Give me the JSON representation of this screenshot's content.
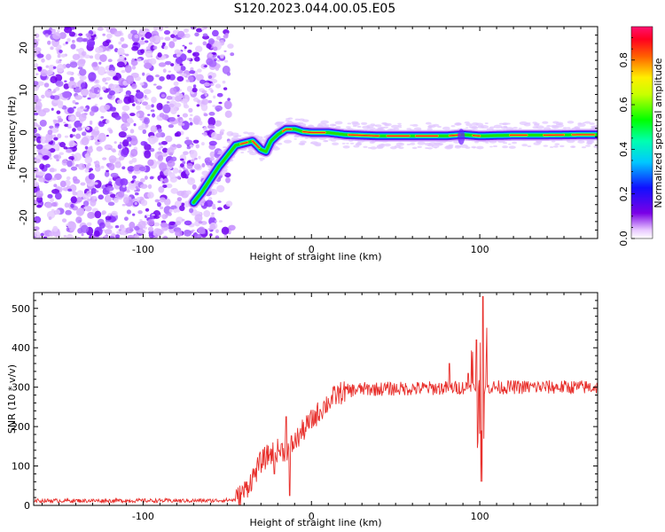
{
  "figure": {
    "title": "S120.2023.044.00.05.E05"
  },
  "chart_data": [
    {
      "type": "heatmap",
      "title": "",
      "xlabel": "Height of straight line (km)",
      "ylabel": "Frequency (Hz)",
      "xlim": [
        -165,
        170
      ],
      "ylim": [
        -25,
        25
      ],
      "xticks": [
        -100,
        0,
        100
      ],
      "yticks": [
        -20,
        -10,
        0,
        10,
        20
      ],
      "colorbar": {
        "label": "Normalized spectral amplitude",
        "range": [
          0,
          0.95
        ],
        "ticks": [
          0.0,
          0.2,
          0.4,
          0.6,
          0.8
        ],
        "colormap": "rainbow (purple-blue-cyan-green-yellow-red-pink)"
      },
      "ridge": [
        [
          -70,
          -16.5
        ],
        [
          -65,
          -14.0
        ],
        [
          -60,
          -11.0
        ],
        [
          -55,
          -8.0
        ],
        [
          -50,
          -5.5
        ],
        [
          -45,
          -3.0
        ],
        [
          -40,
          -2.5
        ],
        [
          -35,
          -2.0
        ],
        [
          -30,
          -4.0
        ],
        [
          -27,
          -4.5
        ],
        [
          -24,
          -2.0
        ],
        [
          -20,
          -0.5
        ],
        [
          -15,
          0.8
        ],
        [
          -10,
          0.8
        ],
        [
          -5,
          0.2
        ],
        [
          0,
          0.0
        ],
        [
          10,
          0.0
        ],
        [
          20,
          -0.5
        ],
        [
          40,
          -0.8
        ],
        [
          60,
          -0.8
        ],
        [
          80,
          -0.8
        ],
        [
          90,
          -0.5
        ],
        [
          100,
          -0.8
        ],
        [
          120,
          -0.6
        ],
        [
          140,
          -0.6
        ],
        [
          160,
          -0.5
        ],
        [
          170,
          -0.5
        ]
      ],
      "noise_region_xmax": -55
    },
    {
      "type": "line",
      "title": "",
      "xlabel": "Height of straight line (km)",
      "ylabel": "SNR (10 * v/v)",
      "xlim": [
        -165,
        170
      ],
      "ylim": [
        0,
        540
      ],
      "xticks": [
        -100,
        0,
        100
      ],
      "yticks": [
        0,
        100,
        200,
        300,
        400,
        500
      ],
      "series": [
        {
          "color": "#e8302c",
          "profile": [
            [
              -165,
              12
            ],
            [
              -100,
              12
            ],
            [
              -60,
              12
            ],
            [
              -45,
              14
            ],
            [
              -40,
              35
            ],
            [
              -35,
              70
            ],
            [
              -30,
              110
            ],
            [
              -25,
              130
            ],
            [
              -20,
              140
            ],
            [
              -15,
              140
            ],
            [
              -10,
              160
            ],
            [
              -5,
              190
            ],
            [
              0,
              215
            ],
            [
              5,
              240
            ],
            [
              10,
              262
            ],
            [
              15,
              280
            ],
            [
              20,
              290
            ],
            [
              30,
              295
            ],
            [
              50,
              296
            ],
            [
              80,
              298
            ],
            [
              95,
              300
            ],
            [
              120,
              300
            ],
            [
              170,
              300
            ]
          ],
          "spikes": [
            [
              -15,
              225
            ],
            [
              -13,
              25
            ],
            [
              -22,
              80
            ],
            [
              82,
              360
            ],
            [
              93,
              335
            ],
            [
              98,
              420
            ],
            [
              100,
              540
            ],
            [
              101,
              60
            ],
            [
              102,
              530
            ],
            [
              104,
              370
            ]
          ]
        }
      ]
    }
  ]
}
